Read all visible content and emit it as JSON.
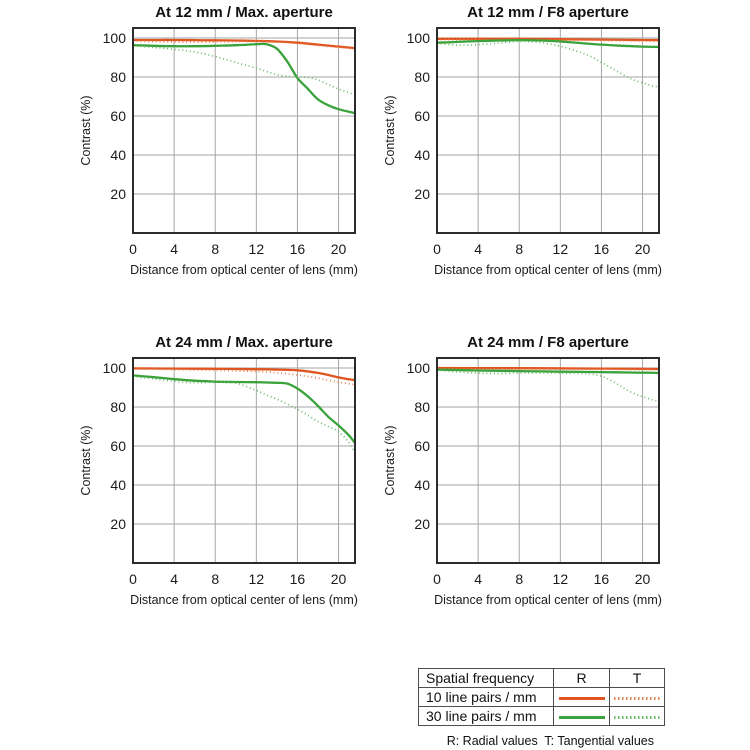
{
  "colors": {
    "orange": "#e0551f",
    "orange_light": "#e6824f",
    "green": "#3aa23a",
    "green_light": "#6cb96c",
    "grid": "#a6a6a6",
    "frame": "#2b2b2b",
    "text": "#1a1a1a"
  },
  "chart_data": [
    {
      "type": "line",
      "title": "At 12 mm / Max. aperture",
      "xlabel": "Distance from optical center of lens (mm)",
      "ylabel": "Contrast (%)",
      "xlim": [
        0,
        21.6
      ],
      "ylim": [
        0,
        105
      ],
      "xticks": [
        0,
        4,
        8,
        12,
        16,
        20
      ],
      "yticks": [
        20,
        40,
        60,
        80,
        100
      ],
      "grid": true,
      "legend_position": "none",
      "series": [
        {
          "id": "10lp-radial",
          "name": "10 line pairs / mm — Radial (R)",
          "style": "solid",
          "color_key": "orange",
          "points": [
            [
              0,
              99
            ],
            [
              2,
              99
            ],
            [
              4,
              99
            ],
            [
              6,
              98.9
            ],
            [
              8,
              98.8
            ],
            [
              10,
              98.7
            ],
            [
              12,
              98.5
            ],
            [
              14,
              98.2
            ],
            [
              16,
              97.6
            ],
            [
              18,
              96.6
            ],
            [
              20,
              95.6
            ],
            [
              21.6,
              94.8
            ]
          ]
        },
        {
          "id": "10lp-tangential",
          "name": "10 line pairs / mm — Tangential (T)",
          "style": "dotted",
          "color_key": "orange_light",
          "points": [
            [
              0,
              98.4
            ],
            [
              2,
              98.1
            ],
            [
              4,
              98
            ],
            [
              6,
              97.9
            ],
            [
              8,
              98
            ],
            [
              10,
              98.1
            ],
            [
              12,
              98.2
            ],
            [
              14,
              97.9
            ],
            [
              16,
              97.2
            ],
            [
              18,
              96.2
            ],
            [
              20,
              95.2
            ],
            [
              21.6,
              94.4
            ]
          ]
        },
        {
          "id": "30lp-radial",
          "name": "30 line pairs / mm — Radial (R)",
          "style": "solid",
          "color_key": "green",
          "points": [
            [
              0,
              96.3
            ],
            [
              2,
              96
            ],
            [
              4,
              95.8
            ],
            [
              6,
              95.8
            ],
            [
              8,
              96
            ],
            [
              10,
              96.3
            ],
            [
              12,
              96.8
            ],
            [
              13,
              96.8
            ],
            [
              14,
              94.5
            ],
            [
              15,
              88
            ],
            [
              16,
              79.5
            ],
            [
              17,
              74
            ],
            [
              18,
              68.5
            ],
            [
              19,
              65.5
            ],
            [
              20,
              63.5
            ],
            [
              21,
              62.2
            ],
            [
              21.6,
              61.5
            ]
          ]
        },
        {
          "id": "30lp-tangential",
          "name": "30 line pairs / mm — Tangential (T)",
          "style": "dotted",
          "color_key": "green_light",
          "points": [
            [
              0,
              96
            ],
            [
              2,
              95.2
            ],
            [
              4,
              94.2
            ],
            [
              6,
              92.8
            ],
            [
              8,
              90.5
            ],
            [
              10,
              87.5
            ],
            [
              12,
              84.5
            ],
            [
              13,
              82.8
            ],
            [
              14,
              81.2
            ],
            [
              15,
              80.4
            ],
            [
              16,
              80
            ],
            [
              17,
              79.8
            ],
            [
              18,
              78.5
            ],
            [
              19,
              76.2
            ],
            [
              20,
              73.8
            ],
            [
              21,
              72
            ],
            [
              21.6,
              70.7
            ]
          ]
        }
      ]
    },
    {
      "type": "line",
      "title": "At 12 mm / F8 aperture",
      "xlabel": "Distance from optical center of lens (mm)",
      "ylabel": "Contrast (%)",
      "xlim": [
        0,
        21.6
      ],
      "ylim": [
        0,
        105
      ],
      "xticks": [
        0,
        4,
        8,
        12,
        16,
        20
      ],
      "yticks": [
        20,
        40,
        60,
        80,
        100
      ],
      "grid": true,
      "legend_position": "none",
      "series": [
        {
          "id": "10lp-radial",
          "name": "10 line pairs / mm — Radial (R)",
          "style": "solid",
          "color_key": "orange",
          "points": [
            [
              0,
              99.6
            ],
            [
              4,
              99.6
            ],
            [
              8,
              99.6
            ],
            [
              12,
              99.4
            ],
            [
              16,
              99.2
            ],
            [
              20,
              99
            ],
            [
              21.6,
              98.9
            ]
          ]
        },
        {
          "id": "10lp-tangential",
          "name": "10 line pairs / mm — Tangential (T)",
          "style": "dotted",
          "color_key": "orange_light",
          "points": [
            [
              0,
              99.2
            ],
            [
              4,
              99.1
            ],
            [
              8,
              99.2
            ],
            [
              12,
              99
            ],
            [
              16,
              98.7
            ],
            [
              20,
              98.4
            ],
            [
              21.6,
              98.3
            ]
          ]
        },
        {
          "id": "30lp-radial",
          "name": "30 line pairs / mm — Radial (R)",
          "style": "solid",
          "color_key": "green",
          "points": [
            [
              0,
              97.6
            ],
            [
              2,
              98
            ],
            [
              4,
              98.4
            ],
            [
              6,
              98.7
            ],
            [
              8,
              98.9
            ],
            [
              10,
              98.7
            ],
            [
              12,
              98.2
            ],
            [
              14,
              97.4
            ],
            [
              16,
              96.6
            ],
            [
              18,
              96
            ],
            [
              20,
              95.6
            ],
            [
              21.6,
              95.4
            ]
          ]
        },
        {
          "id": "30lp-tangential",
          "name": "30 line pairs / mm — Tangential (T)",
          "style": "dotted",
          "color_key": "green_light",
          "points": [
            [
              0,
              97.2
            ],
            [
              2,
              96.4
            ],
            [
              4,
              96.6
            ],
            [
              6,
              97.4
            ],
            [
              8,
              98.2
            ],
            [
              10,
              97.7
            ],
            [
              12,
              95.8
            ],
            [
              14,
              92.5
            ],
            [
              15,
              90.4
            ],
            [
              16,
              87.5
            ],
            [
              17,
              84.5
            ],
            [
              18,
              81.5
            ],
            [
              19,
              78.8
            ],
            [
              20,
              77
            ],
            [
              21,
              75.4
            ],
            [
              21.6,
              75
            ]
          ]
        }
      ]
    },
    {
      "type": "line",
      "title": "At 24 mm / Max. aperture",
      "xlabel": "Distance from optical center of lens (mm)",
      "ylabel": "Contrast (%)",
      "xlim": [
        0,
        21.6
      ],
      "ylim": [
        0,
        105
      ],
      "xticks": [
        0,
        4,
        8,
        12,
        16,
        20
      ],
      "yticks": [
        20,
        40,
        60,
        80,
        100
      ],
      "grid": true,
      "legend_position": "none",
      "series": [
        {
          "id": "10lp-radial",
          "name": "10 line pairs / mm — Radial (R)",
          "style": "solid",
          "color_key": "orange",
          "points": [
            [
              0,
              99.8
            ],
            [
              4,
              99.7
            ],
            [
              8,
              99.6
            ],
            [
              12,
              99.4
            ],
            [
              14,
              99.2
            ],
            [
              16,
              98.8
            ],
            [
              18,
              97.5
            ],
            [
              20,
              95.2
            ],
            [
              21,
              94.2
            ],
            [
              21.6,
              93.8
            ]
          ]
        },
        {
          "id": "10lp-tangential",
          "name": "10 line pairs / mm — Tangential (T)",
          "style": "dotted",
          "color_key": "orange_light",
          "points": [
            [
              0,
              99.5
            ],
            [
              4,
              99.2
            ],
            [
              8,
              98.8
            ],
            [
              12,
              98.2
            ],
            [
              14,
              97.6
            ],
            [
              16,
              96.4
            ],
            [
              18,
              94.8
            ],
            [
              20,
              92.7
            ],
            [
              21.6,
              91.5
            ]
          ]
        },
        {
          "id": "30lp-radial",
          "name": "30 line pairs / mm — Radial (R)",
          "style": "solid",
          "color_key": "green",
          "points": [
            [
              0,
              96.2
            ],
            [
              2,
              95.3
            ],
            [
              4,
              94.3
            ],
            [
              6,
              93.5
            ],
            [
              8,
              93
            ],
            [
              10,
              92.8
            ],
            [
              12,
              92.7
            ],
            [
              14,
              92.4
            ],
            [
              15,
              92
            ],
            [
              16,
              89.5
            ],
            [
              17,
              85.5
            ],
            [
              18,
              80.5
            ],
            [
              19,
              75
            ],
            [
              20,
              70.5
            ],
            [
              21,
              65.5
            ],
            [
              21.6,
              61.5
            ]
          ]
        },
        {
          "id": "30lp-tangential",
          "name": "30 line pairs / mm — Tangential (T)",
          "style": "dotted",
          "color_key": "green_light",
          "points": [
            [
              0,
              95.6
            ],
            [
              2,
              94.4
            ],
            [
              4,
              93.2
            ],
            [
              6,
              92.4
            ],
            [
              8,
              92.7
            ],
            [
              10,
              92.2
            ],
            [
              12,
              88.5
            ],
            [
              13,
              86.2
            ],
            [
              14,
              84
            ],
            [
              15,
              81.5
            ],
            [
              16,
              78.8
            ],
            [
              17,
              75.8
            ],
            [
              18,
              72.5
            ],
            [
              19,
              70
            ],
            [
              20,
              67.3
            ],
            [
              21,
              61.8
            ],
            [
              21.6,
              56.5
            ]
          ]
        }
      ]
    },
    {
      "type": "line",
      "title": "At 24 mm / F8 aperture",
      "xlabel": "Distance from optical center of lens (mm)",
      "ylabel": "Contrast (%)",
      "xlim": [
        0,
        21.6
      ],
      "ylim": [
        0,
        105
      ],
      "xticks": [
        0,
        4,
        8,
        12,
        16,
        20
      ],
      "yticks": [
        20,
        40,
        60,
        80,
        100
      ],
      "grid": true,
      "legend_position": "none",
      "series": [
        {
          "id": "10lp-radial",
          "name": "10 line pairs / mm — Radial (R)",
          "style": "solid",
          "color_key": "orange",
          "points": [
            [
              0,
              100
            ],
            [
              8,
              99.9
            ],
            [
              16,
              99.7
            ],
            [
              21.6,
              99.5
            ]
          ]
        },
        {
          "id": "10lp-tangential",
          "name": "10 line pairs / mm — Tangential (T)",
          "style": "dotted",
          "color_key": "orange_light",
          "points": [
            [
              0,
              99.6
            ],
            [
              8,
              99.5
            ],
            [
              16,
              99.3
            ],
            [
              21.6,
              99.1
            ]
          ]
        },
        {
          "id": "30lp-radial",
          "name": "30 line pairs / mm — Radial (R)",
          "style": "solid",
          "color_key": "green",
          "points": [
            [
              0,
              99.2
            ],
            [
              4,
              98.7
            ],
            [
              8,
              98.4
            ],
            [
              12,
              98.1
            ],
            [
              16,
              97.9
            ],
            [
              20,
              97.6
            ],
            [
              21.6,
              97.5
            ]
          ]
        },
        {
          "id": "30lp-tangential",
          "name": "30 line pairs / mm — Tangential (T)",
          "style": "dotted",
          "color_key": "green_light",
          "points": [
            [
              0,
              98.8
            ],
            [
              2,
              98
            ],
            [
              4,
              97.4
            ],
            [
              6,
              97.2
            ],
            [
              8,
              97.4
            ],
            [
              10,
              97.5
            ],
            [
              12,
              97.4
            ],
            [
              14,
              97.2
            ],
            [
              15,
              96.9
            ],
            [
              16,
              95.8
            ],
            [
              17,
              93.5
            ],
            [
              18,
              90.2
            ],
            [
              19,
              87.3
            ],
            [
              20,
              85.3
            ],
            [
              21,
              83.6
            ],
            [
              21.6,
              82.7
            ]
          ]
        }
      ]
    }
  ],
  "legend": {
    "header": [
      "Spatial frequency",
      "R",
      "T"
    ],
    "rows": [
      {
        "label": "10 line pairs / mm",
        "color": "orange",
        "r_style": "solid",
        "t_style": "dotted"
      },
      {
        "label": "30 line pairs / mm",
        "color": "green",
        "r_style": "solid",
        "t_style": "dotted"
      }
    ],
    "footnote": "R: Radial values  T: Tangential values"
  }
}
